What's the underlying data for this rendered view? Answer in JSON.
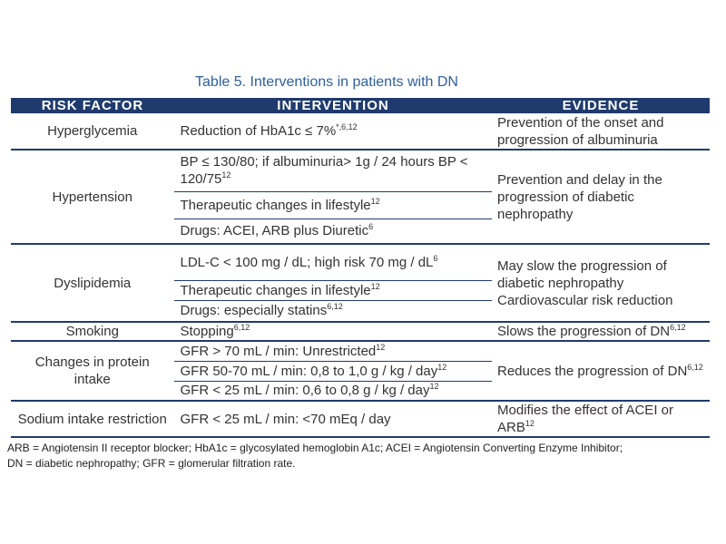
{
  "caption": "Table 5. Interventions in patients with DN",
  "headers": [
    "RISK FACTOR",
    "INTERVENTION",
    "EVIDENCE"
  ],
  "rows": {
    "hyperglycemia": {
      "factor": "Hyperglycemia",
      "intervention": {
        "text": "Reduction of HbA1c ≤ 7%",
        "sup": "*,6,12"
      },
      "evidence": "Prevention of the onset and progression of albuminuria"
    },
    "hypertension": {
      "factor": "Hypertension",
      "interventions": [
        {
          "text": "BP ≤ 130/80; if albuminuria> 1g / 24 hours BP < 120/75",
          "sup": "12"
        },
        {
          "text": "Therapeutic changes in lifestyle",
          "sup": "12"
        },
        {
          "text": "Drugs: ACEI, ARB plus Diuretic",
          "sup": "6"
        }
      ],
      "evidence": "Prevention and delay in the progression of diabetic nephropathy"
    },
    "dyslipidemia": {
      "factor": "Dyslipidemia",
      "interventions": [
        {
          "text": "LDL-C < 100 mg / dL; high risk 70 mg / dL",
          "sup": "6"
        },
        {
          "text": "Therapeutic changes in lifestyle",
          "sup": "12"
        },
        {
          "text": "Drugs: especially statins",
          "sup": "6,12"
        }
      ],
      "evidence": "May slow the progression of diabetic nephropathy Cardiovascular risk reduction"
    },
    "smoking": {
      "factor": "Smoking",
      "intervention": {
        "text": "Stopping",
        "sup": "6,12"
      },
      "evidence": {
        "text": "Slows the progression of DN",
        "sup": "6,12"
      }
    },
    "protein": {
      "factor": "Changes in protein intake",
      "interventions": [
        {
          "text": "GFR > 70 mL / min: Unrestricted",
          "sup": "12"
        },
        {
          "text": "GFR 50-70 mL / min: 0,8 to 1,0 g / kg / day",
          "sup": "12"
        },
        {
          "text": "GFR < 25 mL / min: 0,6 to 0,8 g / kg / day",
          "sup": "12"
        }
      ],
      "evidence": {
        "text": "Reduces the progression of DN",
        "sup": "6,12"
      }
    },
    "sodium": {
      "factor": "Sodium intake restriction",
      "intervention": {
        "text": "GFR < 25 mL / min: <70 mEq / day"
      },
      "evidence": {
        "text": "Modifies the effect of ACEI or ARB",
        "sup": "12"
      }
    }
  },
  "footnote": {
    "line1": "ARB = Angiotensin II receptor blocker; HbA1c = glycosylated hemoglobin A1c; ACEI = Angiotensin Converting Enzyme Inhibitor;",
    "line2": "DN = diabetic nephropathy; GFR = glomerular filtration rate."
  },
  "colors": {
    "header_bg": "#1f3b6e",
    "caption": "#2f5fa0",
    "rule": "#1f3b6e"
  }
}
